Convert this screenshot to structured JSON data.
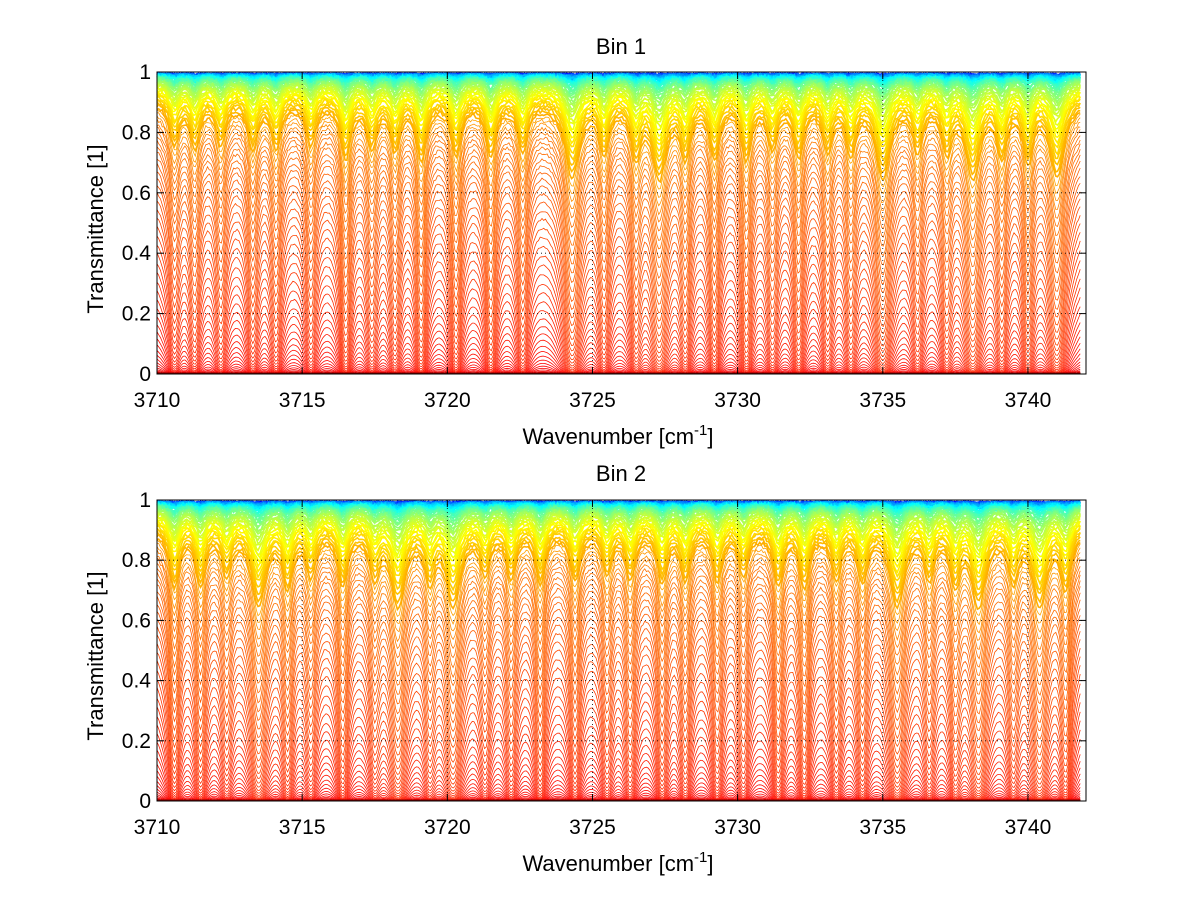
{
  "chart_data": [
    {
      "type": "line",
      "title": "Bin 1",
      "xlabel": "Wavenumber [cm",
      "xlabel_sup": "-1",
      "xlabel_end": "]",
      "ylabel": "Transmittance [1]",
      "xlim": [
        3710,
        3742
      ],
      "ylim": [
        0,
        1
      ],
      "x_ticks": [
        3710,
        3715,
        3720,
        3725,
        3730,
        3735,
        3740
      ],
      "x_tick_labels": [
        "3710",
        "3715",
        "3720",
        "3725",
        "3730",
        "3735",
        "3740"
      ],
      "y_ticks": [
        0,
        0.2,
        0.4,
        0.6,
        0.8,
        1
      ],
      "y_tick_labels": [
        "0",
        "0.2",
        "0.4",
        "0.6",
        "0.8",
        "1"
      ],
      "grid": "dotted",
      "colormap": "jet",
      "colormap_endpoints": [
        "#00008f",
        "#800000"
      ],
      "series_count_approx": 130,
      "absorption_lines": [
        3710.6,
        3711.3,
        3712.2,
        3713.3,
        3714.1,
        3715.3,
        3716.5,
        3717.4,
        3718.2,
        3719.1,
        3720.3,
        3721.5,
        3722.6,
        3724.3,
        3725.4,
        3726.5,
        3727.3,
        3728.2,
        3729.2,
        3730.3,
        3731.2,
        3732.1,
        3733.1,
        3733.9,
        3735.0,
        3736.2,
        3737.2,
        3738.1,
        3739.1,
        3740.0,
        3741.0
      ],
      "deep_absorption_lines": [
        3724.3,
        3727.3,
        3735.0,
        3738.1,
        3741.0
      ]
    },
    {
      "type": "line",
      "title": "Bin 2",
      "xlabel": "Wavenumber [cm",
      "xlabel_sup": "-1",
      "xlabel_end": "]",
      "ylabel": "Transmittance [1]",
      "xlim": [
        3710,
        3742
      ],
      "ylim": [
        0,
        1
      ],
      "x_ticks": [
        3710,
        3715,
        3720,
        3725,
        3730,
        3735,
        3740
      ],
      "x_tick_labels": [
        "3710",
        "3715",
        "3720",
        "3725",
        "3730",
        "3735",
        "3740"
      ],
      "y_ticks": [
        0,
        0.2,
        0.4,
        0.6,
        0.8,
        1
      ],
      "y_tick_labels": [
        "0",
        "0.2",
        "0.4",
        "0.6",
        "0.8",
        "1"
      ],
      "grid": "dotted",
      "colormap": "jet",
      "colormap_endpoints": [
        "#00008f",
        "#800000"
      ],
      "series_count_approx": 130,
      "absorption_lines": [
        3710.6,
        3711.5,
        3712.4,
        3713.5,
        3714.5,
        3715.3,
        3716.4,
        3717.5,
        3718.3,
        3719.4,
        3720.2,
        3721.3,
        3722.2,
        3723.2,
        3724.4,
        3725.5,
        3726.3,
        3727.4,
        3728.2,
        3729.3,
        3730.2,
        3731.4,
        3732.3,
        3733.4,
        3734.3,
        3735.5,
        3736.6,
        3737.5,
        3738.3,
        3739.5,
        3740.4,
        3741.3
      ],
      "deep_absorption_lines": [
        3713.5,
        3718.3,
        3720.2,
        3735.5,
        3738.3,
        3740.4
      ]
    }
  ]
}
